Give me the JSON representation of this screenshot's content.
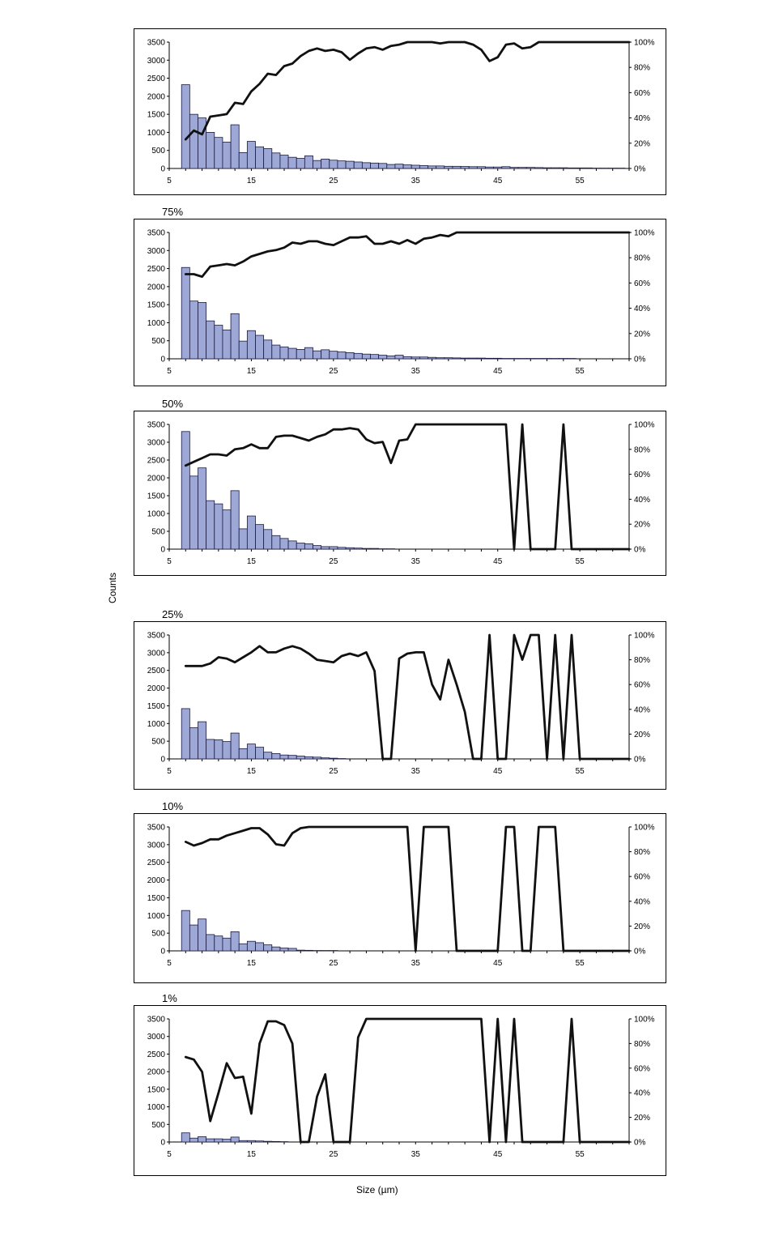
{
  "figure": {
    "ylabel": "Counts",
    "xlabel": "Size (µm)"
  },
  "chart_data": [
    {
      "type": "bar",
      "title": "",
      "x_ticks": [
        5,
        15,
        25,
        35,
        45,
        55
      ],
      "xlim": [
        5,
        61
      ],
      "ylim": [
        0,
        3500
      ],
      "y_ticks": [
        0,
        500,
        1000,
        1500,
        2000,
        2500,
        3000,
        3500
      ],
      "y2lim": [
        0,
        100
      ],
      "y2_ticks": [
        "0%",
        "20%",
        "40%",
        "60%",
        "80%",
        "100%"
      ],
      "bar_x": [
        7,
        8,
        9,
        10,
        11,
        12,
        13,
        14,
        15,
        16,
        17,
        18,
        19,
        20,
        21,
        22,
        23,
        24,
        25,
        26,
        27,
        28,
        29,
        30,
        31,
        32,
        33,
        34,
        35,
        36,
        37,
        38,
        39,
        40,
        41,
        42,
        43,
        44,
        45,
        46,
        47,
        48,
        49,
        50,
        51,
        52,
        53,
        54,
        55,
        56,
        57,
        58,
        59,
        60
      ],
      "counts": [
        2320,
        1500,
        1400,
        1000,
        860,
        730,
        1210,
        440,
        750,
        600,
        550,
        430,
        370,
        310,
        280,
        350,
        220,
        260,
        230,
        210,
        200,
        180,
        160,
        150,
        140,
        110,
        120,
        100,
        90,
        80,
        70,
        70,
        60,
        60,
        55,
        50,
        50,
        40,
        40,
        50,
        30,
        30,
        30,
        25,
        20,
        20,
        20,
        15,
        15,
        15,
        10,
        10,
        10,
        10
      ],
      "series": [
        {
          "name": "",
          "x": [
            7,
            8,
            9,
            10,
            11,
            12,
            13,
            14,
            15,
            16,
            17,
            18,
            19,
            20,
            21,
            22,
            23,
            24,
            25,
            26,
            27,
            28,
            29,
            30,
            31,
            32,
            33,
            34,
            35,
            36,
            37,
            38,
            39,
            40,
            41,
            42,
            43,
            44,
            45,
            46,
            47,
            48,
            49,
            50,
            51,
            52,
            53,
            54,
            55,
            56,
            57,
            58,
            59,
            60,
            61
          ],
          "y": [
            23,
            30,
            27,
            41,
            42,
            43,
            52,
            51,
            61,
            67,
            75,
            74,
            81,
            83,
            89,
            93,
            95,
            93,
            94,
            92,
            86,
            91,
            95,
            96,
            94,
            97,
            98,
            100,
            100,
            100,
            100,
            99,
            100,
            100,
            100,
            98,
            94,
            85,
            88,
            98,
            99,
            95,
            96,
            100,
            100,
            100,
            100,
            100,
            100,
            100,
            100,
            100,
            100,
            100,
            100
          ]
        }
      ]
    },
    {
      "type": "bar",
      "title": "75%",
      "x_ticks": [
        5,
        15,
        25,
        35,
        45,
        55
      ],
      "xlim": [
        5,
        61
      ],
      "ylim": [
        0,
        3500
      ],
      "y_ticks": [
        0,
        500,
        1000,
        1500,
        2000,
        2500,
        3000,
        3500
      ],
      "y2lim": [
        0,
        100
      ],
      "y2_ticks": [
        "0%",
        "20%",
        "40%",
        "60%",
        "80%",
        "100%"
      ],
      "bar_x": [
        7,
        8,
        9,
        10,
        11,
        12,
        13,
        14,
        15,
        16,
        17,
        18,
        19,
        20,
        21,
        22,
        23,
        24,
        25,
        26,
        27,
        28,
        29,
        30,
        31,
        32,
        33,
        34,
        35,
        36,
        37,
        38,
        39,
        40,
        41,
        42,
        43,
        44,
        45,
        46,
        47,
        48,
        49,
        50,
        51,
        52,
        53,
        54
      ],
      "counts": [
        2530,
        1600,
        1560,
        1050,
        930,
        800,
        1250,
        490,
        780,
        650,
        520,
        380,
        330,
        290,
        260,
        310,
        220,
        250,
        210,
        190,
        170,
        150,
        130,
        120,
        100,
        80,
        100,
        60,
        50,
        50,
        40,
        30,
        30,
        25,
        20,
        20,
        20,
        15,
        15,
        10,
        10,
        10,
        10,
        10,
        10,
        10,
        10,
        10
      ],
      "series": [
        {
          "name": "",
          "x": [
            7,
            8,
            9,
            10,
            11,
            12,
            13,
            14,
            15,
            16,
            17,
            18,
            19,
            20,
            21,
            22,
            23,
            24,
            25,
            26,
            27,
            28,
            29,
            30,
            31,
            32,
            33,
            34,
            35,
            36,
            37,
            38,
            39,
            40,
            41,
            42,
            43,
            44,
            45,
            46,
            47,
            48,
            49,
            50,
            51,
            52,
            53,
            54,
            55,
            56,
            57,
            58,
            59,
            60,
            61
          ],
          "y": [
            67,
            67,
            65,
            73,
            74,
            75,
            74,
            77,
            81,
            83,
            85,
            86,
            88,
            92,
            91,
            93,
            93,
            91,
            90,
            93,
            96,
            96,
            97,
            91,
            91,
            93,
            91,
            94,
            91,
            95,
            96,
            98,
            97,
            100,
            100,
            100,
            100,
            100,
            100,
            100,
            100,
            100,
            100,
            100,
            100,
            100,
            100,
            100,
            100,
            100,
            100,
            100,
            100,
            100,
            100
          ]
        }
      ]
    },
    {
      "type": "bar",
      "title": "50%",
      "x_ticks": [
        5,
        15,
        25,
        35,
        45,
        55
      ],
      "xlim": [
        5,
        61
      ],
      "ylim": [
        0,
        3500
      ],
      "y_ticks": [
        0,
        500,
        1000,
        1500,
        2000,
        2500,
        3000,
        3500
      ],
      "y2lim": [
        0,
        100
      ],
      "y2_ticks": [
        "0%",
        "20%",
        "40%",
        "60%",
        "80%",
        "100%"
      ],
      "bar_x": [
        7,
        8,
        9,
        10,
        11,
        12,
        13,
        14,
        15,
        16,
        17,
        18,
        19,
        20,
        21,
        22,
        23,
        24,
        25,
        26,
        27,
        28,
        29,
        30,
        31,
        32
      ],
      "counts": [
        3300,
        2050,
        2280,
        1360,
        1270,
        1100,
        1640,
        570,
        930,
        690,
        550,
        380,
        300,
        230,
        170,
        150,
        100,
        70,
        70,
        50,
        40,
        30,
        20,
        20,
        10,
        10
      ],
      "series": [
        {
          "name": "",
          "x": [
            7,
            8,
            9,
            10,
            11,
            12,
            13,
            14,
            15,
            16,
            17,
            18,
            19,
            20,
            21,
            22,
            23,
            24,
            25,
            26,
            27,
            28,
            29,
            30,
            31,
            32,
            33,
            34,
            35,
            36,
            37,
            38,
            39,
            40,
            41,
            42,
            43,
            44,
            45,
            46,
            47,
            48,
            49,
            50,
            51,
            52,
            53,
            54,
            55,
            56,
            57,
            58,
            59,
            60,
            61
          ],
          "y": [
            67,
            70,
            73,
            76,
            76,
            75,
            80,
            81,
            84,
            81,
            81,
            90,
            91,
            91,
            89,
            87,
            90,
            92,
            96,
            96,
            97,
            96,
            88,
            85,
            86,
            69,
            87,
            88,
            100,
            100,
            100,
            100,
            100,
            100,
            100,
            100,
            100,
            100,
            100,
            100,
            0,
            100,
            0,
            0,
            0,
            0,
            100,
            0,
            0,
            0,
            0,
            0,
            0,
            0,
            0
          ]
        }
      ]
    },
    {
      "type": "bar",
      "title": "25%",
      "x_ticks": [
        5,
        15,
        25,
        35,
        45,
        55
      ],
      "xlim": [
        5,
        61
      ],
      "ylim": [
        0,
        3500
      ],
      "y_ticks": [
        0,
        500,
        1000,
        1500,
        2000,
        2500,
        3000,
        3500
      ],
      "y2lim": [
        0,
        100
      ],
      "y2_ticks": [
        "0%",
        "20%",
        "40%",
        "60%",
        "80%",
        "100%"
      ],
      "bar_x": [
        7,
        8,
        9,
        10,
        11,
        12,
        13,
        14,
        15,
        16,
        17,
        18,
        19,
        20,
        21,
        22,
        23,
        24,
        25,
        26
      ],
      "counts": [
        1420,
        880,
        1050,
        550,
        540,
        490,
        730,
        290,
        420,
        330,
        190,
        150,
        110,
        100,
        80,
        60,
        50,
        30,
        20,
        10
      ],
      "series": [
        {
          "name": "",
          "x": [
            7,
            8,
            9,
            10,
            11,
            12,
            13,
            14,
            15,
            16,
            17,
            18,
            19,
            20,
            21,
            22,
            23,
            24,
            25,
            26,
            27,
            28,
            29,
            30,
            31,
            32,
            33,
            34,
            35,
            36,
            37,
            38,
            39,
            40,
            41,
            42,
            43,
            44,
            45,
            46,
            47,
            48,
            49,
            50,
            51,
            52,
            53,
            54,
            55,
            56,
            57,
            58,
            59,
            60,
            61
          ],
          "y": [
            75,
            75,
            75,
            77,
            82,
            81,
            78,
            82,
            86,
            91,
            86,
            86,
            89,
            91,
            89,
            85,
            80,
            79,
            78,
            83,
            85,
            83,
            86,
            71,
            0,
            0,
            81,
            85,
            86,
            86,
            60,
            48,
            80,
            60,
            38,
            0,
            0,
            100,
            0,
            0,
            100,
            80,
            100,
            100,
            0,
            100,
            0,
            100,
            0,
            0,
            0,
            0,
            0,
            0,
            0
          ]
        }
      ]
    },
    {
      "type": "bar",
      "title": "10%",
      "x_ticks": [
        5,
        15,
        25,
        35,
        45,
        55
      ],
      "xlim": [
        5,
        61
      ],
      "ylim": [
        0,
        3500
      ],
      "y_ticks": [
        0,
        500,
        1000,
        1500,
        2000,
        2500,
        3000,
        3500
      ],
      "y2lim": [
        0,
        100
      ],
      "y2_ticks": [
        "0%",
        "20%",
        "40%",
        "60%",
        "80%",
        "100%"
      ],
      "bar_x": [
        7,
        8,
        9,
        10,
        11,
        12,
        13,
        14,
        15,
        16,
        17,
        18,
        19,
        20,
        21,
        22,
        23,
        24,
        25
      ],
      "counts": [
        1140,
        730,
        900,
        460,
        420,
        360,
        540,
        200,
        270,
        230,
        170,
        110,
        80,
        70,
        20,
        15,
        10,
        10,
        10
      ],
      "series": [
        {
          "name": "",
          "x": [
            7,
            8,
            9,
            10,
            11,
            12,
            13,
            14,
            15,
            16,
            17,
            18,
            19,
            20,
            21,
            22,
            23,
            24,
            25,
            26,
            27,
            28,
            29,
            30,
            31,
            32,
            33,
            34,
            35,
            36,
            37,
            38,
            39,
            40,
            41,
            42,
            43,
            44,
            45,
            46,
            47,
            48,
            49,
            50,
            51,
            52,
            53,
            54,
            55,
            56,
            57,
            58,
            59,
            60,
            61
          ],
          "y": [
            88,
            85,
            87,
            90,
            90,
            93,
            95,
            97,
            99,
            99,
            94,
            86,
            85,
            95,
            99,
            100,
            100,
            100,
            100,
            100,
            100,
            100,
            100,
            100,
            100,
            100,
            100,
            100,
            0,
            100,
            100,
            100,
            100,
            0,
            0,
            0,
            0,
            0,
            0,
            100,
            100,
            0,
            0,
            100,
            100,
            100,
            0,
            0,
            0,
            0,
            0,
            0,
            0,
            0,
            0
          ]
        }
      ]
    },
    {
      "type": "bar",
      "title": "1%",
      "x_ticks": [
        5,
        15,
        25,
        35,
        45,
        55
      ],
      "xlim": [
        5,
        61
      ],
      "ylim": [
        0,
        3500
      ],
      "y_ticks": [
        0,
        500,
        1000,
        1500,
        2000,
        2500,
        3000,
        3500
      ],
      "y2lim": [
        0,
        100
      ],
      "y2_ticks": [
        "0%",
        "20%",
        "40%",
        "60%",
        "80%",
        "100%"
      ],
      "bar_x": [
        7,
        8,
        9,
        10,
        11,
        12,
        13,
        14,
        15,
        16,
        17,
        18,
        19
      ],
      "counts": [
        260,
        110,
        150,
        90,
        90,
        80,
        140,
        40,
        40,
        30,
        20,
        15,
        10
      ],
      "series": [
        {
          "name": "",
          "x": [
            7,
            8,
            9,
            10,
            11,
            12,
            13,
            14,
            15,
            16,
            17,
            18,
            19,
            20,
            21,
            22,
            23,
            24,
            25,
            26,
            27,
            28,
            29,
            30,
            31,
            32,
            33,
            34,
            35,
            36,
            37,
            38,
            39,
            40,
            41,
            42,
            43,
            44,
            45,
            46,
            47,
            48,
            49,
            50,
            51,
            52,
            53,
            54,
            55,
            56,
            57,
            58,
            59,
            60,
            61
          ],
          "y": [
            69,
            67,
            57,
            17,
            40,
            64,
            52,
            53,
            23,
            80,
            98,
            98,
            95,
            80,
            0,
            0,
            37,
            55,
            0,
            0,
            0,
            85,
            100,
            100,
            100,
            100,
            100,
            100,
            100,
            100,
            100,
            100,
            100,
            100,
            100,
            100,
            100,
            0,
            100,
            0,
            100,
            0,
            0,
            0,
            0,
            0,
            0,
            100,
            0,
            0,
            0,
            0,
            0,
            0,
            0
          ]
        }
      ]
    }
  ],
  "style": {
    "bar_fill": "#9da8d6",
    "bar_stroke": "#1a1a40",
    "line_color": "#111111"
  }
}
